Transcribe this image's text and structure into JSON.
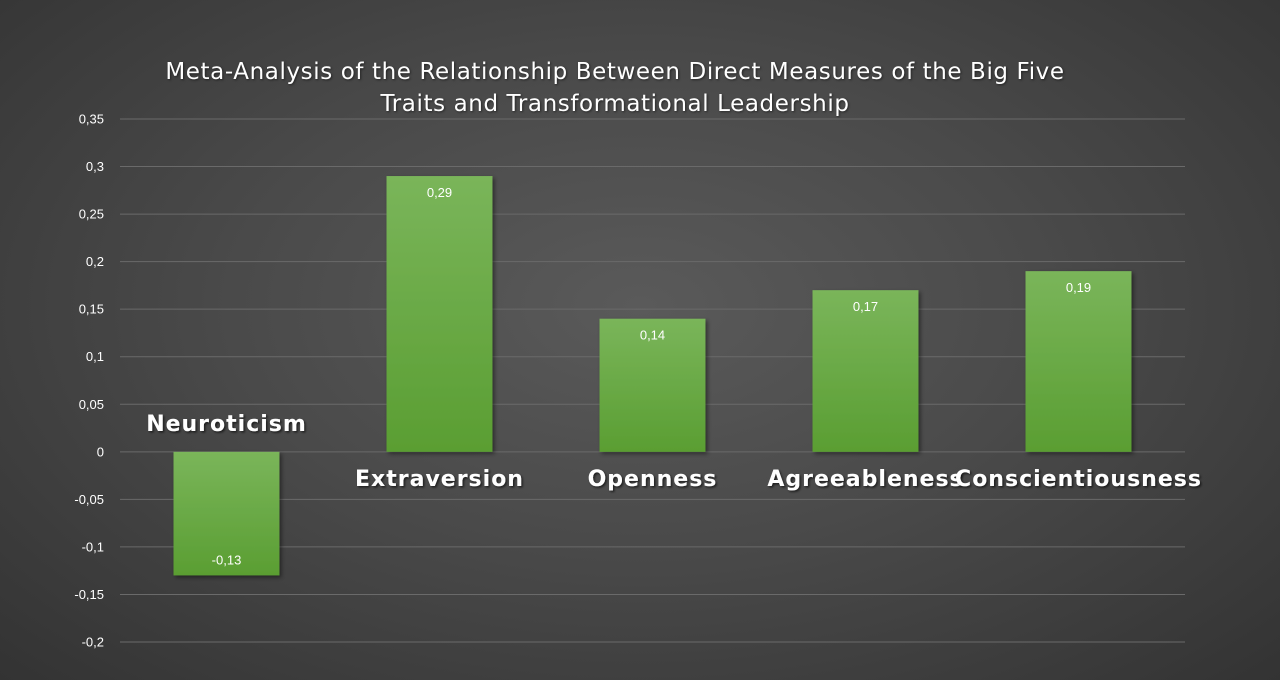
{
  "chart_data": {
    "type": "bar",
    "title_lines": [
      "Meta-Analysis of the Relationship Between Direct Measures of the Big Five",
      "Traits and Transformational Leadership"
    ],
    "categories": [
      "Neuroticism",
      "Extraversion",
      "Openness",
      "Agreeableness",
      "Conscientiousness"
    ],
    "values": [
      -0.13,
      0.29,
      0.14,
      0.17,
      0.19
    ],
    "data_labels": [
      "-0,13",
      "0,29",
      "0,14",
      "0,17",
      "0,19"
    ],
    "ylim": [
      -0.2,
      0.35
    ],
    "y_ticks": [
      -0.2,
      -0.15,
      -0.1,
      -0.05,
      0,
      0.05,
      0.1,
      0.15,
      0.2,
      0.25,
      0.3,
      0.35
    ],
    "y_tick_labels": [
      "-0,2",
      "-0,15",
      "-0,1",
      "-0,05",
      "0",
      "0,05",
      "0,1",
      "0,15",
      "0,2",
      "0,25",
      "0,3",
      "0,35"
    ],
    "xlabel": "",
    "ylabel": "",
    "grid": true,
    "legend": "none",
    "colors": {
      "bar_top": "#7ab55a",
      "bar_bottom": "#5a9e32",
      "grid": "#6a6a6a",
      "text": "#ffffff"
    }
  }
}
